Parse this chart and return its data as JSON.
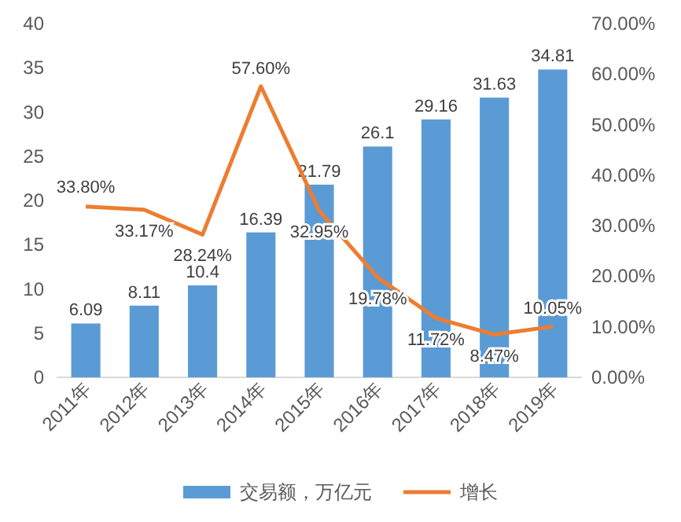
{
  "chart_data": {
    "type": "bar",
    "categories": [
      "2011年",
      "2012年",
      "2013年",
      "2014年",
      "2015年",
      "2016年",
      "2017年",
      "2018年",
      "2019年"
    ],
    "series": [
      {
        "name": "交易额，万亿元",
        "color": "#5b9bd5",
        "values": [
          6.09,
          8.11,
          10.4,
          16.39,
          21.79,
          26.1,
          29.16,
          31.63,
          34.81
        ],
        "value_labels": [
          "6.09",
          "8.11",
          "10.4",
          "16.39",
          "21.79",
          "26.1",
          "29.16",
          "31.63",
          "34.81"
        ]
      },
      {
        "name": "增长",
        "type": "line",
        "axis": "y2",
        "color": "#ed7d31",
        "values": [
          33.8,
          33.17,
          28.24,
          57.6,
          32.95,
          19.78,
          11.72,
          8.47,
          10.05
        ],
        "value_labels": [
          "33.80%",
          "33.17%",
          "28.24%",
          "57.60%",
          "32.95%",
          "19.78%",
          "11.72%",
          "8.47%",
          "10.05%"
        ]
      }
    ],
    "ylim": [
      0,
      40
    ],
    "yticks": [
      0,
      5,
      10,
      15,
      20,
      25,
      30,
      35,
      40
    ],
    "y2lim": [
      0,
      70
    ],
    "y2ticks": [
      {
        "value": 0,
        "label": "0.00%"
      },
      {
        "value": 10,
        "label": "10.00%"
      },
      {
        "value": 20,
        "label": "20.00%"
      },
      {
        "value": 30,
        "label": "30.00%"
      },
      {
        "value": 40,
        "label": "40.00%"
      },
      {
        "value": 50,
        "label": "50.00%"
      },
      {
        "value": 60,
        "label": "60.00%"
      },
      {
        "value": 70,
        "label": "70.00%"
      }
    ],
    "grid": false,
    "legend": "bottom",
    "marker": "none",
    "line_style": "solid"
  }
}
